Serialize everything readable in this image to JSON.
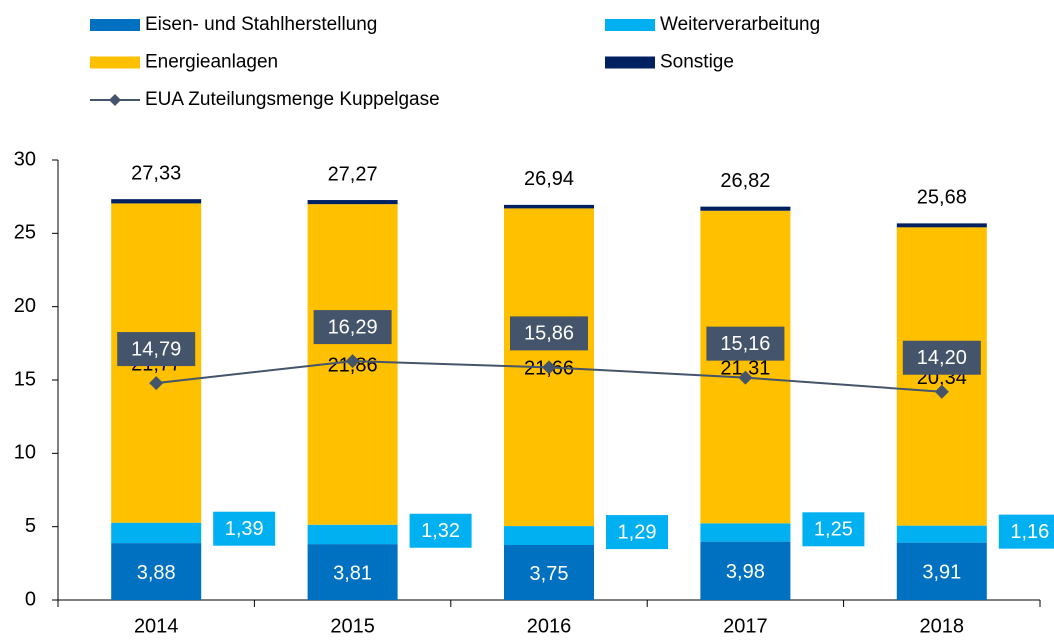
{
  "chart_data": {
    "type": "stacked-bar-line",
    "categories": [
      "2014",
      "2015",
      "2016",
      "2017",
      "2018"
    ],
    "series": [
      {
        "name": "Eisen- und Stahlherstellung",
        "color": "#0070c0",
        "values": [
          3.88,
          3.81,
          3.75,
          3.98,
          3.91
        ],
        "value_labels": [
          "3,88",
          "3,81",
          "3,75",
          "3,98",
          "3,91"
        ]
      },
      {
        "name": "Weiterverarbeitung",
        "color": "#00b0f0",
        "values": [
          1.39,
          1.32,
          1.29,
          1.25,
          1.16
        ],
        "value_labels": [
          "1,39",
          "1,32",
          "1,29",
          "1,25",
          "1,16"
        ]
      },
      {
        "name": "Energieanlagen",
        "color": "#ffc000",
        "values": [
          21.77,
          21.86,
          21.66,
          21.31,
          20.34
        ],
        "value_labels": [
          "21,77",
          "21,86",
          "21,66",
          "21,31",
          "20,34"
        ]
      },
      {
        "name": "Sonstige",
        "color": "#002060",
        "values": [
          0.29,
          0.28,
          0.24,
          0.28,
          0.27
        ]
      },
      {
        "name": "EUA Zuteilungsmenge Kuppelgase",
        "type": "line",
        "color": "#44546a",
        "values": [
          14.79,
          16.29,
          15.86,
          15.16,
          14.2
        ],
        "value_labels": [
          "14,79",
          "16,29",
          "15,86",
          "15,16",
          "14,20"
        ]
      }
    ],
    "totals": [
      27.33,
      27.27,
      26.94,
      26.82,
      25.68
    ],
    "total_labels": [
      "27,33",
      "27,27",
      "26,94",
      "26,82",
      "25,68"
    ],
    "ylim": [
      0,
      30
    ],
    "yticks": [
      0,
      5,
      10,
      15,
      20,
      25,
      30
    ]
  }
}
